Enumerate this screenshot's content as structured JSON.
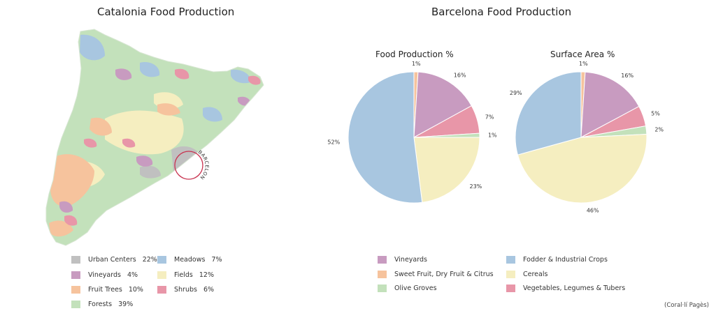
{
  "titles": {
    "left": "Catalonia Food Production",
    "right": "Barcelona Food Production",
    "pie1": "Food Production %",
    "pie2": "Surface Area %"
  },
  "map": {
    "marker_label": "BARCELONA",
    "legend": [
      {
        "label": "Urban Centers",
        "value": "22%",
        "color": "#c0c0c0"
      },
      {
        "label": "Vineyards",
        "value": "4%",
        "color": "#c89bc0"
      },
      {
        "label": "Fruit Trees",
        "value": "10%",
        "color": "#f6c39d"
      },
      {
        "label": "Forests",
        "value": "39%",
        "color": "#c3e1bb"
      },
      {
        "label": "Meadows",
        "value": "7%",
        "color": "#a8c6e0"
      },
      {
        "label": "Fields",
        "value": "12%",
        "color": "#f5eec0"
      },
      {
        "label": "Shrubs",
        "value": "6%",
        "color": "#e896a8"
      }
    ]
  },
  "chart_data": [
    {
      "type": "pie",
      "title": "Food Production %",
      "slices": [
        {
          "name": "Sweet Fruit, Dry Fruit & Citrus",
          "value": 1,
          "label": "1%",
          "color": "#f6c39d"
        },
        {
          "name": "Vineyards",
          "value": 16,
          "label": "16%",
          "color": "#c89bc0"
        },
        {
          "name": "Vegetables, Legumes & Tubers",
          "value": 7,
          "label": "7%",
          "color": "#e896a8"
        },
        {
          "name": "Olive Groves",
          "value": 1,
          "label": "1%",
          "color": "#c3e1bb"
        },
        {
          "name": "Cereals",
          "value": 23,
          "label": "23%",
          "color": "#f5eec0"
        },
        {
          "name": "Fodder & Industrial Crops",
          "value": 52,
          "label": "52%",
          "color": "#a8c6e0"
        }
      ]
    },
    {
      "type": "pie",
      "title": "Surface Area %",
      "slices": [
        {
          "name": "Sweet Fruit, Dry Fruit & Citrus",
          "value": 1,
          "label": "1%",
          "color": "#f6c39d"
        },
        {
          "name": "Vineyards",
          "value": 16,
          "label": "16%",
          "color": "#c89bc0"
        },
        {
          "name": "Vegetables, Legumes & Tubers",
          "value": 5,
          "label": "5%",
          "color": "#e896a8"
        },
        {
          "name": "Olive Groves",
          "value": 2,
          "label": "2%",
          "color": "#c3e1bb"
        },
        {
          "name": "Cereals",
          "value": 46,
          "label": "46%",
          "color": "#f5eec0"
        },
        {
          "name": "Fodder & Industrial Crops",
          "value": 29,
          "label": "29%",
          "color": "#a8c6e0"
        }
      ]
    }
  ],
  "pie_legend": [
    {
      "label": "Vineyards",
      "color": "#c89bc0"
    },
    {
      "label": "Sweet Fruit, Dry Fruit & Citrus",
      "color": "#f6c39d"
    },
    {
      "label": "Olive Groves",
      "color": "#c3e1bb"
    },
    {
      "label": "Fodder & Industrial Crops",
      "color": "#a8c6e0"
    },
    {
      "label": "Cereals",
      "color": "#f5eec0"
    },
    {
      "label": "Vegetables, Legumes & Tubers",
      "color": "#e896a8"
    }
  ],
  "credit": "(Coral·lí Pagès)"
}
